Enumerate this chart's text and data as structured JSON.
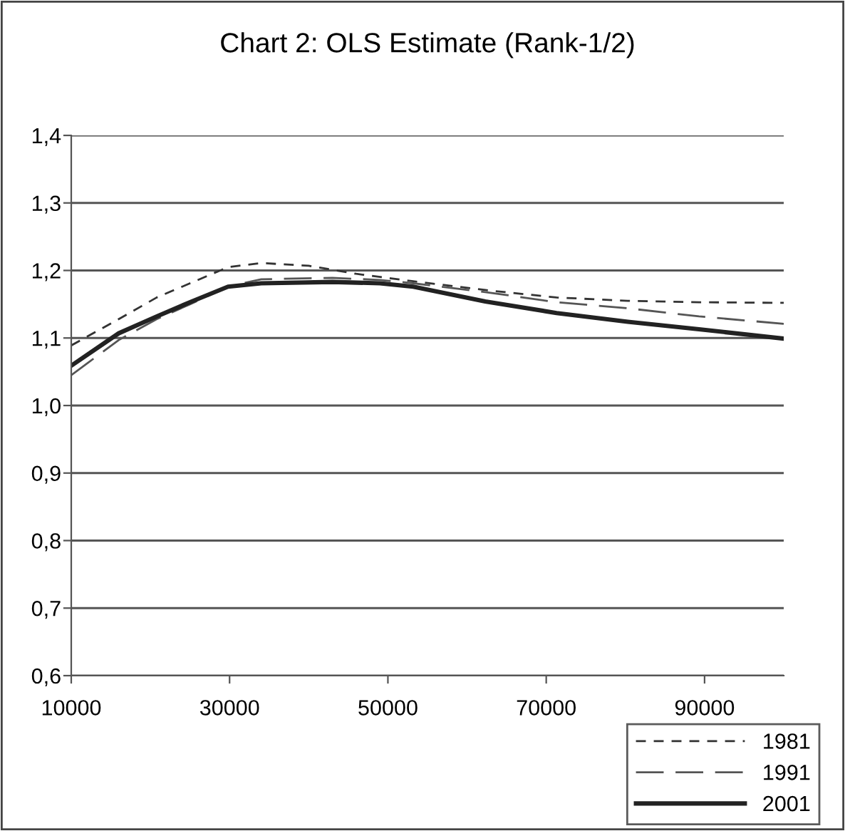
{
  "chart_data": {
    "type": "line",
    "title": "Chart 2: OLS Estimate (Rank-1/2)",
    "xlim": [
      10000,
      100000
    ],
    "xticks": [
      10000,
      30000,
      50000,
      70000,
      90000
    ],
    "ylim": [
      0.6,
      1.4
    ],
    "yticks": [
      {
        "value": 0.6,
        "label": "0,6"
      },
      {
        "value": 0.7,
        "label": "0,7"
      },
      {
        "value": 0.8,
        "label": "0,8"
      },
      {
        "value": 0.9,
        "label": "0,9"
      },
      {
        "value": 1.0,
        "label": "1,0"
      },
      {
        "value": 1.1,
        "label": "1,1"
      },
      {
        "value": 1.2,
        "label": "1,2"
      },
      {
        "value": 1.3,
        "label": "1,3"
      },
      {
        "value": 1.4,
        "label": "1,4"
      }
    ],
    "grid": "y",
    "legend": "bottom right",
    "marker": "none",
    "series": [
      {
        "name": "1981",
        "color": "#333333",
        "line_style": "dashed",
        "x": [
          10000,
          16000,
          20800,
          25000,
          29800,
          34000,
          40000,
          46000,
          53200,
          62300,
          71300,
          80300,
          89300,
          100000
        ],
        "values": [
          1.089,
          1.128,
          1.16,
          1.181,
          1.205,
          1.211,
          1.207,
          1.195,
          1.184,
          1.171,
          1.16,
          1.155,
          1.153,
          1.152
        ]
      },
      {
        "name": "1991",
        "color": "#555555",
        "line_style": "dashed",
        "x": [
          10000,
          16000,
          20800,
          25000,
          29800,
          34000,
          43000,
          49000,
          53200,
          62300,
          71300,
          80300,
          89300,
          100000
        ],
        "values": [
          1.045,
          1.097,
          1.128,
          1.15,
          1.176,
          1.187,
          1.189,
          1.186,
          1.181,
          1.168,
          1.153,
          1.144,
          1.132,
          1.121
        ]
      },
      {
        "name": "2001",
        "color": "#222222",
        "line_style": "solid",
        "x": [
          10000,
          16000,
          20800,
          25000,
          29800,
          34000,
          43000,
          49000,
          53200,
          62300,
          71300,
          80300,
          89300,
          100000
        ],
        "values": [
          1.059,
          1.107,
          1.132,
          1.153,
          1.176,
          1.181,
          1.183,
          1.181,
          1.176,
          1.154,
          1.137,
          1.124,
          1.113,
          1.099
        ]
      }
    ]
  }
}
